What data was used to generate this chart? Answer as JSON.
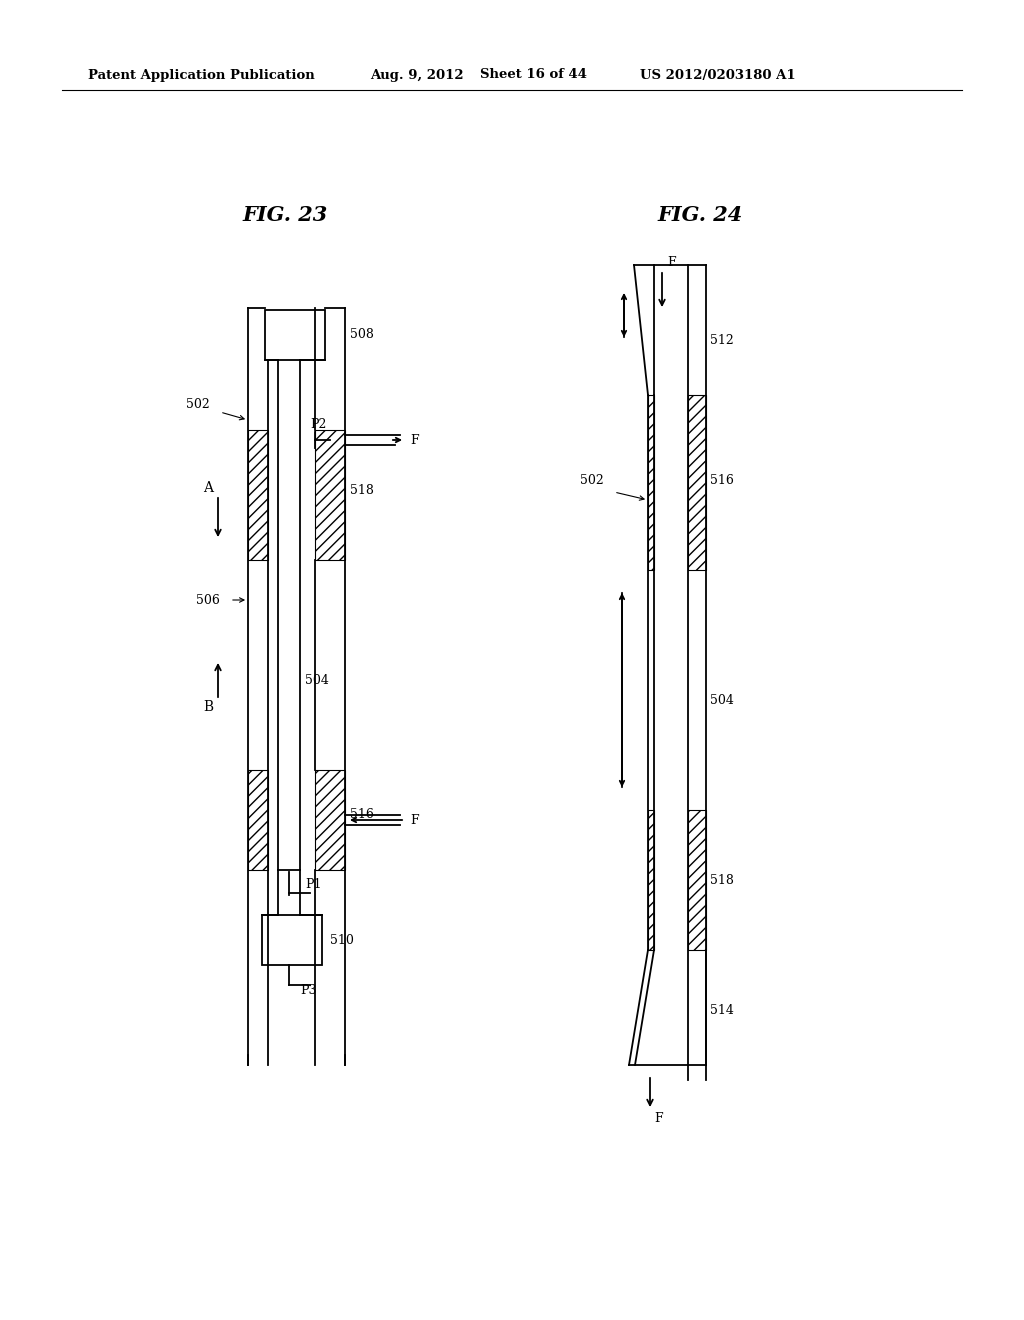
{
  "background_color": "#ffffff",
  "header_text": "Patent Application Publication",
  "header_date": "Aug. 9, 2012",
  "header_sheet": "Sheet 16 of 44",
  "header_patent": "US 2012/0203180 A1",
  "fig23_title": "FIG. 23",
  "fig24_title": "FIG. 24",
  "line_color": "#000000"
}
